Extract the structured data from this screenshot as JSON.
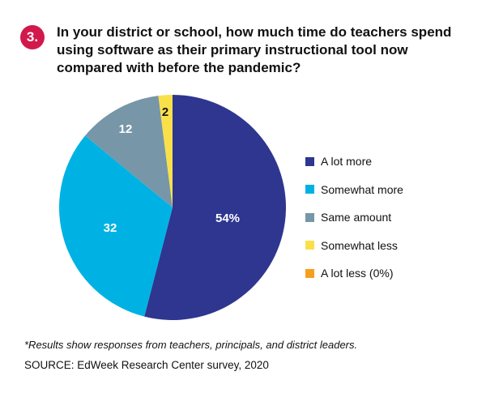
{
  "badge": "3.",
  "title": "In your district or school, how much time do teachers spend using software as their primary instructional tool now compared with before the pandemic?",
  "chart_data": {
    "type": "pie",
    "categories": [
      "A lot more",
      "Somewhat more",
      "Same amount",
      "Somewhat less",
      "A lot less (0%)"
    ],
    "values": [
      54,
      32,
      12,
      2,
      0
    ],
    "slice_labels": [
      "54%",
      "32",
      "12",
      "2",
      ""
    ],
    "colors": [
      "#2e3690",
      "#00b2e3",
      "#7796a8",
      "#f9e04b",
      "#f59f1f"
    ],
    "label_colors": [
      "#ffffff",
      "#ffffff",
      "#ffffff",
      "#111111",
      "#111111"
    ],
    "legend_position": "right"
  },
  "footnote": "*Results show responses from teachers, principals, and district leaders.",
  "source": "SOURCE: EdWeek Research Center survey, 2020"
}
